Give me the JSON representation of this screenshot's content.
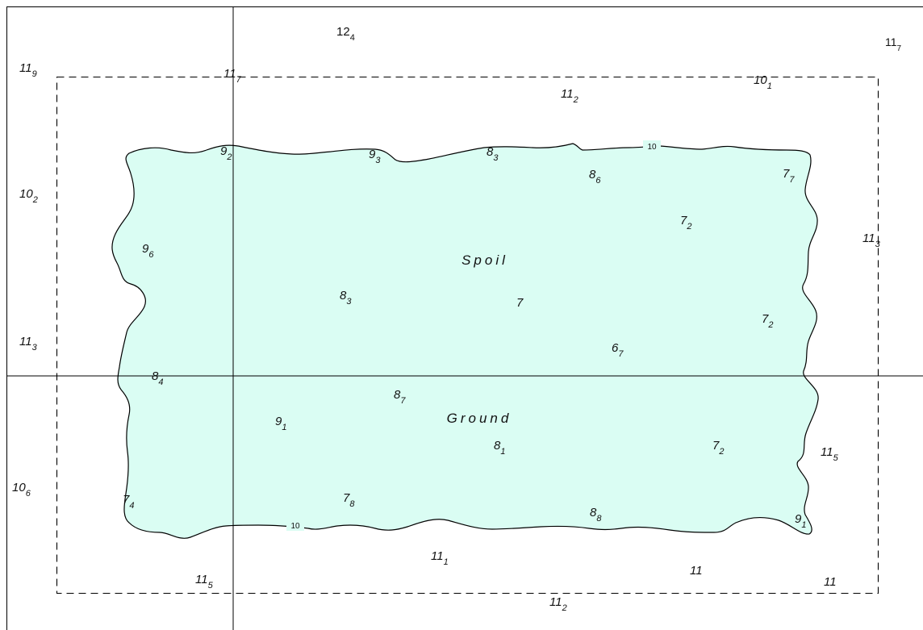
{
  "map": {
    "colors": {
      "spoil_fill": "#dafdf3",
      "line": "#000000",
      "background": "#ffffff"
    },
    "area_labels": [
      "Spoil",
      "Ground"
    ],
    "contour_labels": [
      "10",
      "10"
    ],
    "soundings": [
      {
        "main": "12",
        "sub": "4"
      },
      {
        "main": "11",
        "sub": "7"
      },
      {
        "main": "11",
        "sub": "9"
      },
      {
        "main": "11",
        "sub": "7"
      },
      {
        "main": "10",
        "sub": "1"
      },
      {
        "main": "11",
        "sub": "2"
      },
      {
        "main": "9",
        "sub": "2"
      },
      {
        "main": "9",
        "sub": "3"
      },
      {
        "main": "8",
        "sub": "3"
      },
      {
        "main": "8",
        "sub": "6"
      },
      {
        "main": "7",
        "sub": "7"
      },
      {
        "main": "10",
        "sub": "2"
      },
      {
        "main": "7",
        "sub": "2"
      },
      {
        "main": "11",
        "sub": "3"
      },
      {
        "main": "9",
        "sub": "6"
      },
      {
        "main": "8",
        "sub": "3"
      },
      {
        "main": "7",
        "sub": ""
      },
      {
        "main": "7",
        "sub": "2"
      },
      {
        "main": "11",
        "sub": "3"
      },
      {
        "main": "6",
        "sub": "7"
      },
      {
        "main": "8",
        "sub": "4"
      },
      {
        "main": "8",
        "sub": "7"
      },
      {
        "main": "9",
        "sub": "1"
      },
      {
        "main": "8",
        "sub": "1"
      },
      {
        "main": "7",
        "sub": "2"
      },
      {
        "main": "11",
        "sub": "5"
      },
      {
        "main": "10",
        "sub": "6"
      },
      {
        "main": "7",
        "sub": "4"
      },
      {
        "main": "7",
        "sub": "8"
      },
      {
        "main": "8",
        "sub": "8"
      },
      {
        "main": "9",
        "sub": "1"
      },
      {
        "main": "11",
        "sub": "1"
      },
      {
        "main": "11",
        "sub": ""
      },
      {
        "main": "11",
        "sub": ""
      },
      {
        "main": "11",
        "sub": "5"
      },
      {
        "main": "11",
        "sub": "2"
      }
    ]
  }
}
